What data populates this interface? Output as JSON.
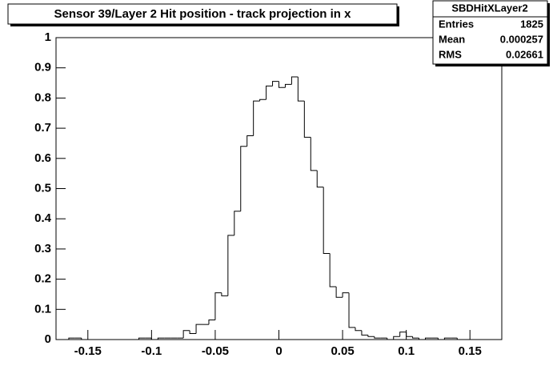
{
  "chart_data": {
    "type": "histogram",
    "title": "Sensor 39/Layer 2 Hit position - track projection in x",
    "stats": {
      "title": "SBDHitXLayer2",
      "rows": [
        {
          "label": "Entries",
          "value": 1825
        },
        {
          "label": "Mean",
          "value": 0.000257
        },
        {
          "label": "RMS",
          "value": 0.02661
        }
      ]
    },
    "bins": [
      -0.175,
      -0.17,
      -0.165,
      -0.16,
      -0.155,
      -0.15,
      -0.145,
      -0.14,
      -0.135,
      -0.13,
      -0.125,
      -0.12,
      -0.115,
      -0.11,
      -0.105,
      -0.1,
      -0.095,
      -0.09,
      -0.085,
      -0.08,
      -0.075,
      -0.07,
      -0.065,
      -0.06,
      -0.055,
      -0.05,
      -0.045,
      -0.04,
      -0.035,
      -0.03,
      -0.025,
      -0.02,
      -0.015,
      -0.01,
      -0.005,
      0,
      0.005,
      0.01,
      0.015,
      0.02,
      0.025,
      0.03,
      0.035,
      0.04,
      0.045,
      0.05,
      0.055,
      0.06,
      0.065,
      0.07,
      0.075,
      0.08,
      0.085,
      0.09,
      0.095,
      0.1,
      0.105,
      0.11,
      0.115,
      0.12,
      0.125,
      0.13,
      0.135,
      0.14,
      0.145,
      0.15,
      0.155,
      0.16,
      0.165,
      0.17,
      0.175
    ],
    "values": [
      0,
      0,
      0.005,
      0.005,
      0,
      0,
      0,
      0,
      0,
      0,
      0,
      0,
      0,
      0.005,
      0.005,
      0,
      0.005,
      0.005,
      0.005,
      0.005,
      0.03,
      0.02,
      0.05,
      0.05,
      0.065,
      0.155,
      0.145,
      0.345,
      0.425,
      0.64,
      0.675,
      0.79,
      0.795,
      0.84,
      0.855,
      0.835,
      0.845,
      0.87,
      0.79,
      0.67,
      0.56,
      0.505,
      0.285,
      0.175,
      0.14,
      0.155,
      0.04,
      0.03,
      0.015,
      0.01,
      0.005,
      0.005,
      0,
      0.01,
      0.025,
      0.01,
      0.005,
      0,
      0.005,
      0.005,
      0,
      0.005,
      0.005,
      0,
      0,
      0,
      0,
      0,
      0,
      0
    ],
    "color": "#000000",
    "xlim": [
      -0.175,
      0.175
    ],
    "xticks": [
      -0.15,
      -0.1,
      -0.05,
      0,
      0.05,
      0.1,
      0.15
    ],
    "ylim": [
      0,
      1
    ],
    "yticks": [
      0,
      0.1,
      0.2,
      0.3,
      0.4,
      0.5,
      0.6,
      0.7,
      0.8,
      0.9,
      1
    ]
  }
}
